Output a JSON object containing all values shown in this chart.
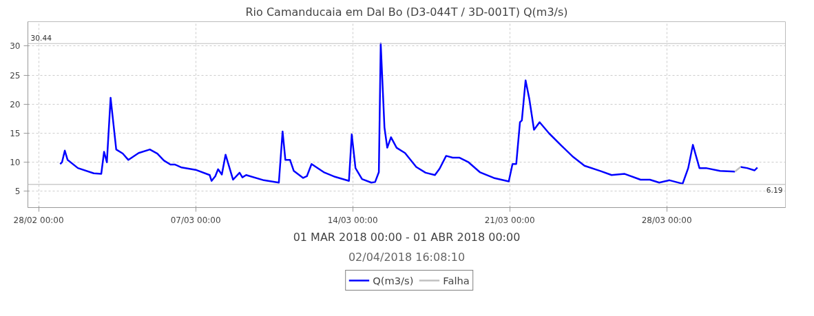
{
  "chart_data": {
    "type": "line",
    "title": "Rio Camanducaia em Dal Bo (D3-044T / 3D-001T) Q(m3/s)",
    "xlabel": "01 MAR 2018 00:00 - 01 ABR 2018 00:00",
    "annotations": [
      "02/04/2018 16:08:10"
    ],
    "series": [
      {
        "name": "Q(m3/s)",
        "color": "#0000ff",
        "x": [
          "2018-02-28T23:00",
          "2018-03-01T01:00",
          "2018-03-01T04:00",
          "2018-03-01T07:00",
          "2018-03-01T18:00",
          "2018-03-02T11:00",
          "2018-03-02T19:00",
          "2018-03-02T22:00",
          "2018-03-03T01:00",
          "2018-03-03T05:00",
          "2018-03-03T11:00",
          "2018-03-03T18:00",
          "2018-03-04T00:00",
          "2018-03-04T11:00",
          "2018-03-04T23:00",
          "2018-03-05T07:00",
          "2018-03-05T14:00",
          "2018-03-05T21:00",
          "2018-03-06T02:00",
          "2018-03-06T09:00",
          "2018-03-07T00:00",
          "2018-03-07T15:00",
          "2018-03-07T17:00",
          "2018-03-07T21:00",
          "2018-03-08T00:00",
          "2018-03-08T04:00",
          "2018-03-08T08:00",
          "2018-03-08T16:00",
          "2018-03-08T23:00",
          "2018-03-09T02:00",
          "2018-03-09T06:00",
          "2018-03-10T01:00",
          "2018-03-10T17:00",
          "2018-03-10T21:00",
          "2018-03-11T00:00",
          "2018-03-11T05:00",
          "2018-03-11T09:00",
          "2018-03-11T19:00",
          "2018-03-11T23:00",
          "2018-03-12T04:00",
          "2018-03-12T17:00",
          "2018-03-13T05:00",
          "2018-03-13T20:00",
          "2018-03-13T23:00",
          "2018-03-14T03:00",
          "2018-03-14T10:00",
          "2018-03-14T20:00",
          "2018-03-15T00:00",
          "2018-03-15T04:00",
          "2018-03-15T06:00",
          "2018-03-15T10:00",
          "2018-03-15T13:00",
          "2018-03-15T17:00",
          "2018-03-15T23:00",
          "2018-03-16T08:00",
          "2018-03-16T20:00",
          "2018-03-17T06:00",
          "2018-03-17T16:00",
          "2018-03-17T21:00",
          "2018-03-18T04:00",
          "2018-03-18T11:00",
          "2018-03-18T18:00",
          "2018-03-19T04:00",
          "2018-03-19T16:00",
          "2018-03-20T07:00",
          "2018-03-20T23:00",
          "2018-03-21T03:00",
          "2018-03-21T07:00",
          "2018-03-21T11:00",
          "2018-03-21T13:00",
          "2018-03-21T17:00",
          "2018-03-21T21:00",
          "2018-03-22T02:00",
          "2018-03-22T08:00",
          "2018-03-22T18:00",
          "2018-03-23T07:00",
          "2018-03-23T20:00",
          "2018-03-24T08:00",
          "2018-03-25T01:00",
          "2018-03-25T13:00",
          "2018-03-26T03:00",
          "2018-03-26T20:00",
          "2018-03-27T06:00",
          "2018-03-27T16:00",
          "2018-03-28T03:00",
          "2018-03-28T17:00",
          "2018-03-28T23:00",
          "2018-03-29T04:00",
          "2018-03-29T11:00",
          "2018-03-29T18:00",
          "2018-03-30T09:00",
          "2018-03-31T01:00",
          "2018-03-31T04:00",
          "2018-03-31T07:00",
          "2018-03-31T14:00",
          "2018-03-31T22:00",
          "2018-04-01T01:00"
        ],
        "values": [
          9.7,
          10.0,
          12.0,
          10.4,
          9.0,
          8.1,
          8.0,
          11.8,
          10.0,
          21.1,
          12.2,
          11.5,
          10.4,
          11.6,
          12.2,
          11.5,
          10.3,
          9.6,
          9.6,
          9.1,
          8.7,
          7.8,
          6.8,
          7.6,
          8.8,
          7.9,
          11.3,
          7.0,
          8.2,
          7.4,
          7.8,
          6.9,
          6.5,
          15.3,
          10.4,
          10.4,
          8.5,
          7.3,
          7.6,
          9.7,
          8.3,
          7.5,
          6.8,
          14.8,
          9.0,
          7.1,
          6.5,
          6.6,
          8.3,
          30.44,
          16.0,
          12.5,
          14.3,
          12.5,
          11.6,
          9.2,
          8.2,
          7.8,
          8.9,
          11.1,
          10.8,
          10.8,
          10.0,
          8.3,
          7.3,
          6.7,
          9.7,
          9.7,
          16.9,
          17.2,
          24.1,
          20.9,
          15.6,
          16.9,
          15.0,
          12.9,
          10.9,
          9.4,
          8.5,
          7.8,
          8.0,
          7.0,
          7.0,
          6.5,
          6.9,
          6.3,
          9.0,
          13.0,
          9.0,
          9.0,
          8.5,
          8.4,
          null,
          9.2,
          9.0,
          8.6,
          9.1
        ]
      },
      {
        "name": "Falha",
        "color": "#c0c0c0",
        "x": [
          "2018-03-31T01:00",
          "2018-03-31T07:00"
        ],
        "values": [
          8.4,
          9.2
        ]
      }
    ],
    "xlim": [
      "2018-02-27T12:30",
      "2018-04-02T07:00"
    ],
    "xticks": [
      {
        "value": "2018-02-28T00:00",
        "label": "28/02 00:00"
      },
      {
        "value": "2018-03-07T00:00",
        "label": "07/03 00:00"
      },
      {
        "value": "2018-03-14T00:00",
        "label": "14/03 00:00"
      },
      {
        "value": "2018-03-21T00:00",
        "label": "21/03 00:00"
      },
      {
        "value": "2018-03-28T00:00",
        "label": "28/03 00:00"
      }
    ],
    "ylim": [
      2.2,
      34.2
    ],
    "yticks": [
      5,
      10,
      15,
      20,
      25,
      30
    ],
    "ref_lines": [
      {
        "axis": "y",
        "value": 30.44,
        "label": "30.44",
        "color": "#c0c0c0"
      },
      {
        "axis": "y",
        "value": 6.19,
        "label": "6.19",
        "color": "#c0c0c0"
      }
    ],
    "grid": true,
    "legend": "bottom",
    "line_style": "solid"
  }
}
